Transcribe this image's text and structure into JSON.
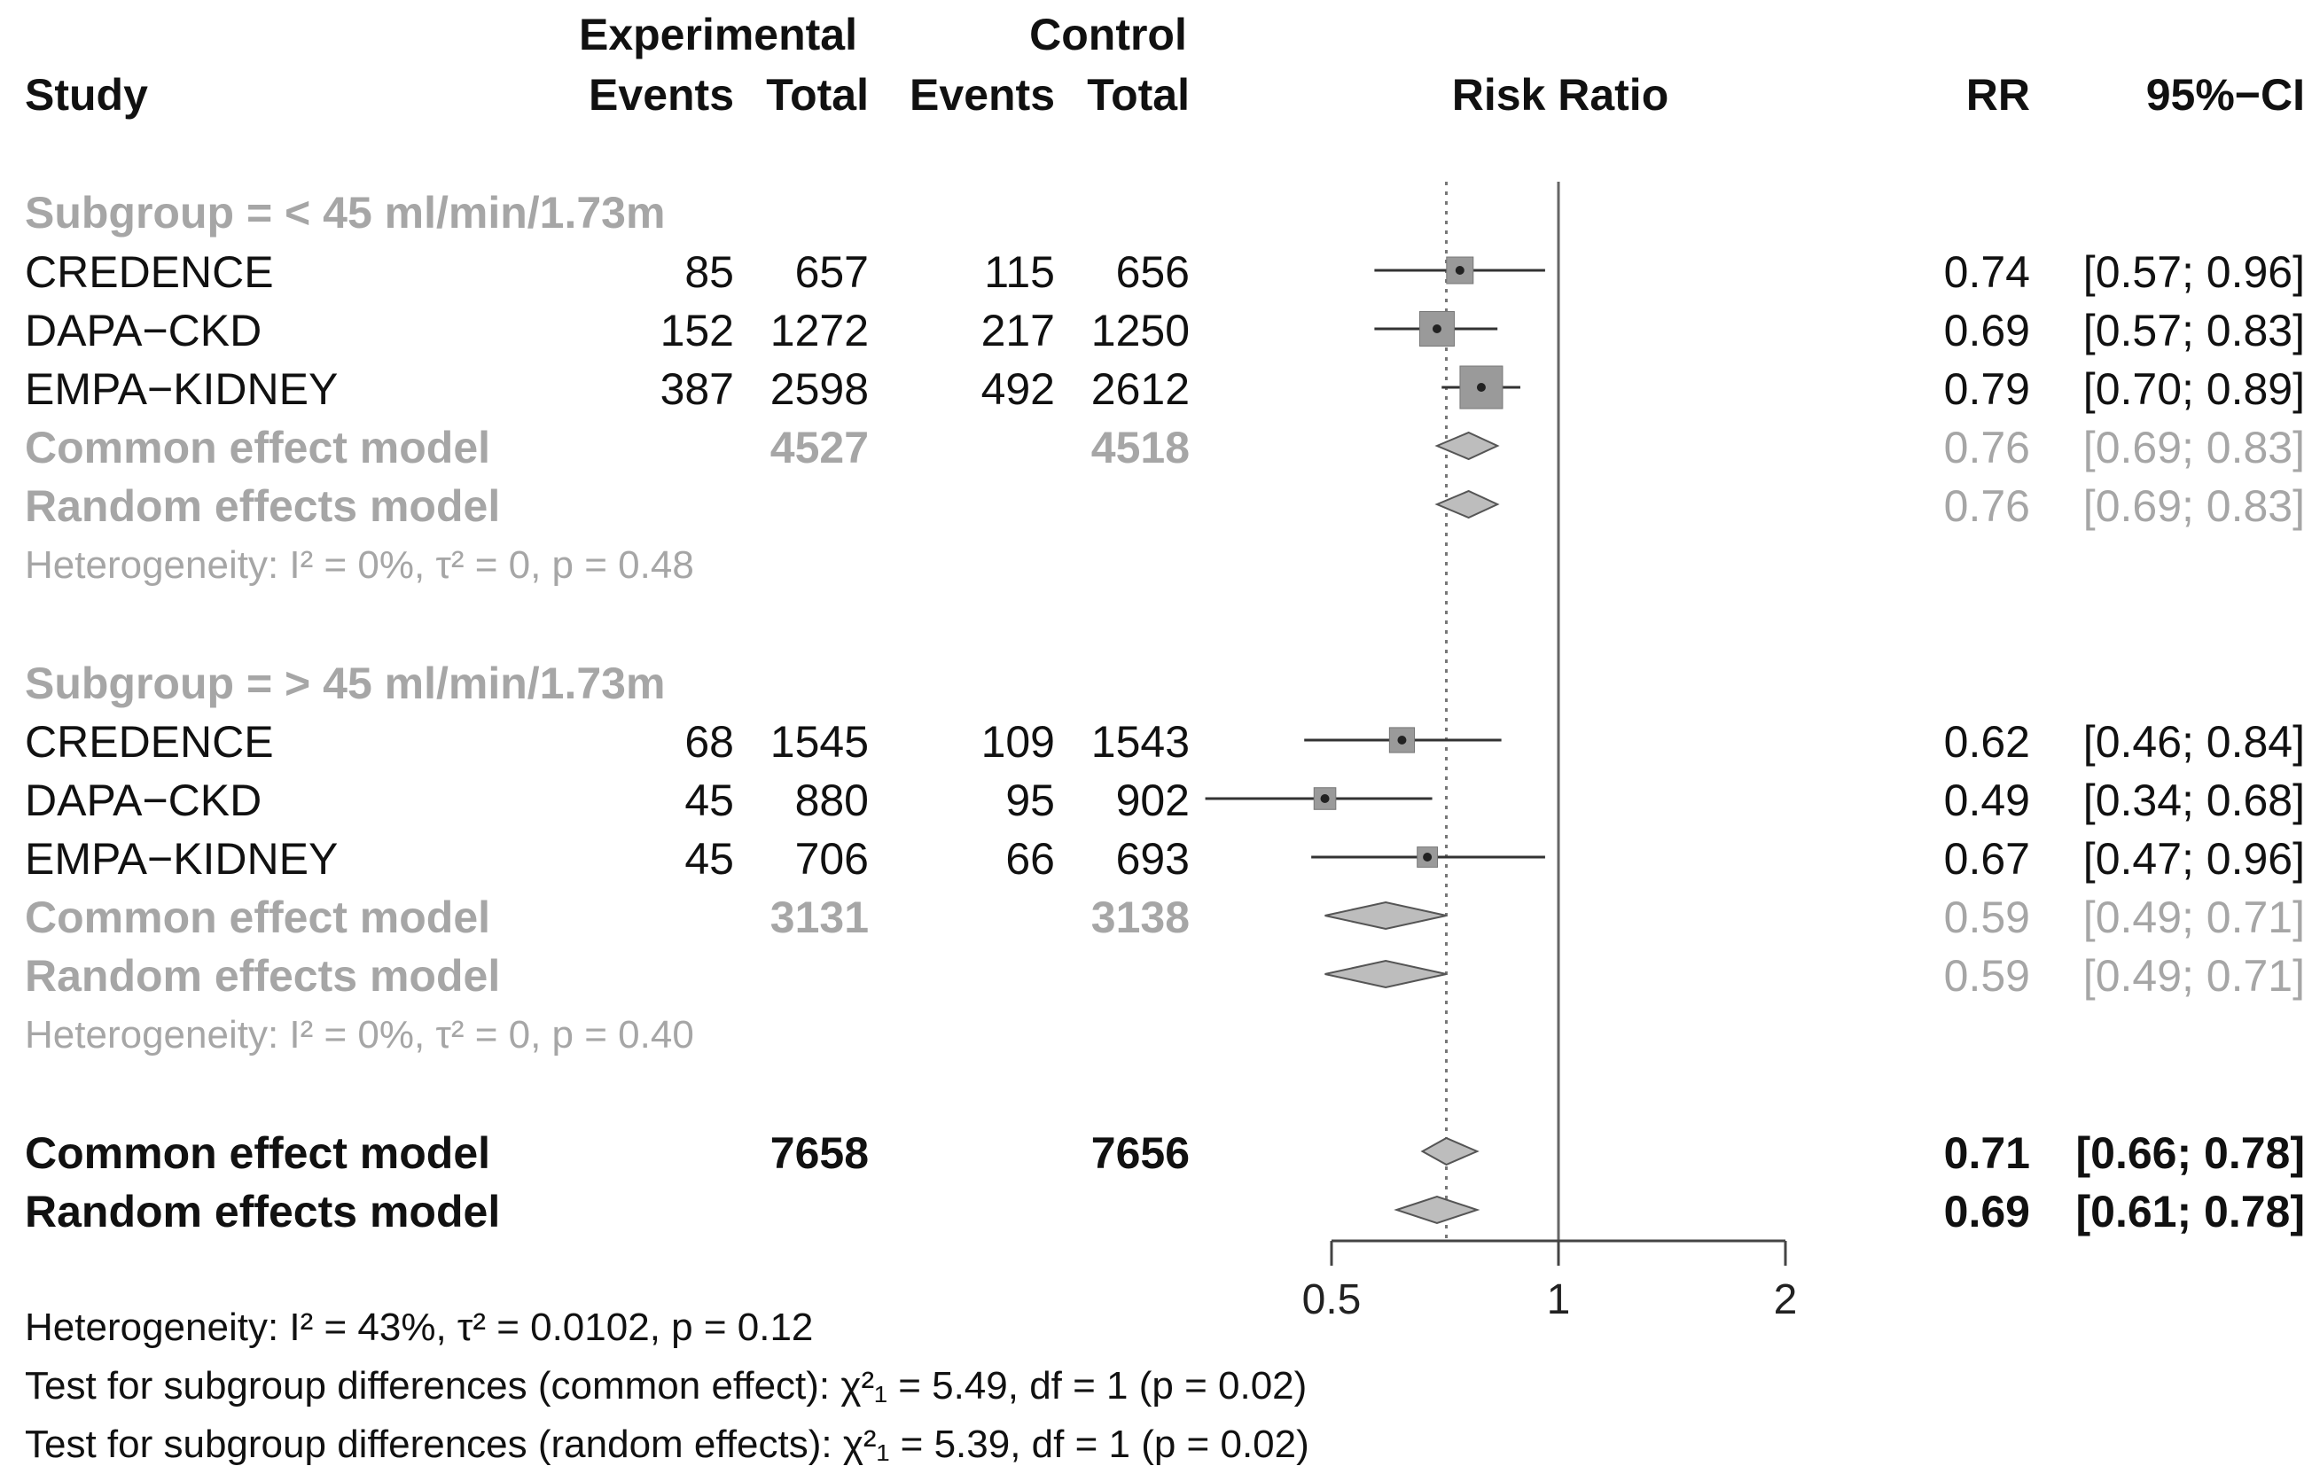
{
  "headers": {
    "study": "Study",
    "experimental": "Experimental",
    "control": "Control",
    "events": "Events",
    "total": "Total",
    "risk_ratio": "Risk Ratio",
    "rr": "RR",
    "ci": "95%−CI"
  },
  "subgroups": [
    {
      "label": "Subgroup = < 45 ml/min/1.73m",
      "studies": [
        {
          "name": "CREDENCE",
          "exp_events": "85",
          "exp_total": "657",
          "ctrl_events": "115",
          "ctrl_total": "656",
          "rr": "0.74",
          "ci": "[0.57; 0.96]"
        },
        {
          "name": "DAPA−CKD",
          "exp_events": "152",
          "exp_total": "1272",
          "ctrl_events": "217",
          "ctrl_total": "1250",
          "rr": "0.69",
          "ci": "[0.57; 0.83]"
        },
        {
          "name": "EMPA−KIDNEY",
          "exp_events": "387",
          "exp_total": "2598",
          "ctrl_events": "492",
          "ctrl_total": "2612",
          "rr": "0.79",
          "ci": "[0.70; 0.89]"
        }
      ],
      "common": {
        "label": "Common effect model",
        "exp_total": "4527",
        "ctrl_total": "4518",
        "rr": "0.76",
        "ci": "[0.69; 0.83]"
      },
      "random": {
        "label": "Random effects model",
        "rr": "0.76",
        "ci": "[0.69; 0.83]"
      },
      "heterogeneity": "Heterogeneity: I² = 0%, τ² = 0, p = 0.48"
    },
    {
      "label": "Subgroup = > 45 ml/min/1.73m",
      "studies": [
        {
          "name": "CREDENCE",
          "exp_events": "68",
          "exp_total": "1545",
          "ctrl_events": "109",
          "ctrl_total": "1543",
          "rr": "0.62",
          "ci": "[0.46; 0.84]"
        },
        {
          "name": "DAPA−CKD",
          "exp_events": "45",
          "exp_total": "880",
          "ctrl_events": "95",
          "ctrl_total": "902",
          "rr": "0.49",
          "ci": "[0.34; 0.68]"
        },
        {
          "name": "EMPA−KIDNEY",
          "exp_events": "45",
          "exp_total": "706",
          "ctrl_events": "66",
          "ctrl_total": "693",
          "rr": "0.67",
          "ci": "[0.47; 0.96]"
        }
      ],
      "common": {
        "label": "Common effect model",
        "exp_total": "3131",
        "ctrl_total": "3138",
        "rr": "0.59",
        "ci": "[0.49; 0.71]"
      },
      "random": {
        "label": "Random effects model",
        "rr": "0.59",
        "ci": "[0.49; 0.71]"
      },
      "heterogeneity": "Heterogeneity: I² = 0%, τ² = 0, p = 0.40"
    }
  ],
  "overall": {
    "common": {
      "label": "Common effect model",
      "exp_total": "7658",
      "ctrl_total": "7656",
      "rr": "0.71",
      "ci": "[0.66; 0.78]"
    },
    "random": {
      "label": "Random effects model",
      "rr": "0.69",
      "ci": "[0.61; 0.78]"
    },
    "heterogeneity": "Heterogeneity: I² = 43%, τ² = 0.0102, p = 0.12",
    "test_common": "Test for subgroup differences (common effect): χ²₁ = 5.49, df = 1 (p = 0.02)",
    "test_random": "Test for subgroup differences (random effects): χ²₁ = 5.39, df = 1 (p = 0.02)"
  },
  "chart_data": {
    "type": "scatter",
    "scale": "log",
    "xlabel": "Risk Ratio",
    "xlim": [
      0.35,
      2
    ],
    "xticks": [
      {
        "value": 0.5,
        "label": "0.5"
      },
      {
        "value": 1,
        "label": "1"
      },
      {
        "value": 2,
        "label": "2"
      }
    ],
    "reference_line": 1,
    "common_effect_line": 0.71,
    "studies": [
      {
        "group": 0,
        "name": "CREDENCE",
        "rr": 0.74,
        "lower": 0.57,
        "upper": 0.96,
        "weight": 0.5
      },
      {
        "group": 0,
        "name": "DAPA−CKD",
        "rr": 0.69,
        "lower": 0.57,
        "upper": 0.83,
        "weight": 0.75
      },
      {
        "group": 0,
        "name": "EMPA−KIDNEY",
        "rr": 0.79,
        "lower": 0.7,
        "upper": 0.89,
        "weight": 1.0
      },
      {
        "group": 1,
        "name": "CREDENCE",
        "rr": 0.62,
        "lower": 0.46,
        "upper": 0.84,
        "weight": 0.45
      },
      {
        "group": 1,
        "name": "DAPA−CKD",
        "rr": 0.49,
        "lower": 0.34,
        "upper": 0.68,
        "weight": 0.35
      },
      {
        "group": 1,
        "name": "EMPA−KIDNEY",
        "rr": 0.67,
        "lower": 0.47,
        "upper": 0.96,
        "weight": 0.3
      }
    ],
    "pooled": [
      {
        "group": 0,
        "model": "common",
        "rr": 0.76,
        "lower": 0.69,
        "upper": 0.83
      },
      {
        "group": 0,
        "model": "random",
        "rr": 0.76,
        "lower": 0.69,
        "upper": 0.83
      },
      {
        "group": 1,
        "model": "common",
        "rr": 0.59,
        "lower": 0.49,
        "upper": 0.71
      },
      {
        "group": 1,
        "model": "random",
        "rr": 0.59,
        "lower": 0.49,
        "upper": 0.71
      },
      {
        "group": "overall",
        "model": "common",
        "rr": 0.71,
        "lower": 0.66,
        "upper": 0.78
      },
      {
        "group": "overall",
        "model": "random",
        "rr": 0.69,
        "lower": 0.61,
        "upper": 0.78
      }
    ]
  }
}
